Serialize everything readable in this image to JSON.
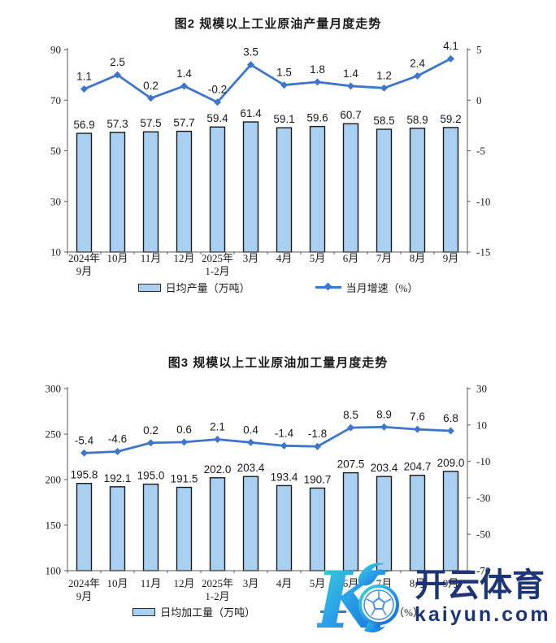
{
  "page": {
    "background": "#ffffff"
  },
  "chart_data": [
    {
      "type": "bar+line",
      "title": "图2 规模以上工业原油产量月度走势",
      "categories": [
        "2024年\n9月",
        "10月",
        "11月",
        "12月",
        "2025年\n1-2月",
        "3月",
        "4月",
        "5月",
        "6月",
        "7月",
        "8月",
        "9月"
      ],
      "bar": {
        "name": "日均产量（万吨）",
        "values": [
          56.9,
          57.3,
          57.5,
          57.7,
          59.4,
          61.4,
          59.1,
          59.6,
          60.7,
          58.5,
          58.9,
          59.2
        ],
        "color": "#A9CFF1",
        "border_color": "#1a1a1a"
      },
      "line": {
        "name": "当月增速（%）",
        "values": [
          1.1,
          2.5,
          0.2,
          1.4,
          -0.2,
          3.5,
          1.5,
          1.8,
          1.4,
          1.2,
          2.4,
          4.1
        ],
        "color": "#3E76CB"
      },
      "left_axis": {
        "ticks": [
          90,
          70,
          50,
          30,
          10
        ],
        "min": 10,
        "max": 90
      },
      "right_axis": {
        "ticks": [
          5,
          0,
          -5,
          -10,
          -15
        ],
        "min": -15,
        "max": 5
      },
      "grid": false,
      "legend_position": "bottom"
    },
    {
      "type": "bar+line",
      "title": "图3 规模以上工业原油加工量月度走势",
      "categories": [
        "2024年\n9月",
        "10月",
        "11月",
        "12月",
        "2025年\n1-2月",
        "3月",
        "4月",
        "5月",
        "6月",
        "7月",
        "8月",
        "9月"
      ],
      "bar": {
        "name": "日均加工量（万吨）",
        "values": [
          195.8,
          192.1,
          195.0,
          191.5,
          202.0,
          203.4,
          193.4,
          190.7,
          207.5,
          203.4,
          204.7,
          209.0
        ],
        "color": "#A9CFF1",
        "border_color": "#1a1a1a"
      },
      "line": {
        "name": "当月增速（%）",
        "values": [
          -5.4,
          -4.6,
          0.2,
          0.6,
          2.1,
          0.4,
          -1.4,
          -1.8,
          8.5,
          8.9,
          7.6,
          6.8
        ],
        "color": "#3E76CB"
      },
      "left_axis": {
        "ticks": [
          300,
          250,
          200,
          150,
          100
        ],
        "min": 100,
        "max": 300
      },
      "right_axis": {
        "ticks": [
          30,
          10,
          -10,
          -30,
          -50,
          -70
        ],
        "min": -70,
        "max": 30
      },
      "grid": false,
      "legend_position": "bottom"
    }
  ],
  "watermark": {
    "logo_letter": "K",
    "brand": "开云体育",
    "domain": "kaiyun.com",
    "navy": "#1d3576",
    "gradient_start": "#3ED8CE",
    "gradient_end": "#1565D8",
    "ball_color": "#4A90E2"
  }
}
